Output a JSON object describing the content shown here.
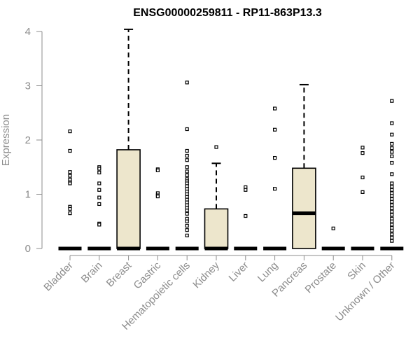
{
  "chart_data": {
    "type": "box",
    "title": "ENSG00000259811 - RP11-863P13.3",
    "xlabel": "",
    "ylabel": "Expression",
    "ylim": [
      0,
      4
    ],
    "yticks": [
      0,
      1,
      2,
      3,
      4
    ],
    "box_fill": "#ede6cc",
    "line_color": "#000000",
    "axis_color": "#8c8c8c",
    "categories": [
      "Bladder",
      "Brain",
      "Breast",
      "Gastric",
      "Hematopoietic cells",
      "Kidney",
      "Liver",
      "Lung",
      "Pancreas",
      "Prostate",
      "Skin",
      "Unknown / Other"
    ],
    "boxes": [
      {
        "q1": 0,
        "median": 0,
        "q3": 0,
        "whisker_low": 0,
        "whisker_high": 0,
        "outliers": [
          2.16,
          1.8,
          1.41,
          1.34,
          1.27,
          1.22,
          1.2,
          0.77,
          0.73,
          0.65
        ]
      },
      {
        "q1": 0,
        "median": 0,
        "q3": 0,
        "whisker_low": 0,
        "whisker_high": 0,
        "outliers": [
          1.5,
          1.47,
          1.4,
          1.2,
          1.08,
          0.94,
          0.82,
          0.46,
          0.44
        ]
      },
      {
        "q1": 0,
        "median": 0,
        "q3": 1.82,
        "whisker_low": 0,
        "whisker_high": 4.04,
        "outliers": []
      },
      {
        "q1": 0,
        "median": 0,
        "q3": 0,
        "whisker_low": 0,
        "whisker_high": 0,
        "outliers": [
          1.46,
          1.44,
          1.02,
          0.98,
          0.96
        ]
      },
      {
        "q1": 0,
        "median": 0,
        "q3": 0,
        "whisker_low": 0,
        "whisker_high": 0,
        "outliers": [
          3.06,
          2.2,
          1.8,
          1.71,
          1.63,
          1.5,
          1.42,
          1.35,
          1.28,
          1.24,
          1.2,
          1.15,
          1.1,
          1.05,
          1.0,
          0.95,
          0.9,
          0.85,
          0.8,
          0.75,
          0.7,
          0.64,
          0.55,
          0.5,
          0.42,
          0.34,
          0.24
        ]
      },
      {
        "q1": 0,
        "median": 0,
        "q3": 0.73,
        "whisker_low": 0,
        "whisker_high": 1.57,
        "outliers": [
          1.87
        ]
      },
      {
        "q1": 0,
        "median": 0,
        "q3": 0,
        "whisker_low": 0,
        "whisker_high": 0,
        "outliers": [
          1.13,
          1.08,
          0.6
        ]
      },
      {
        "q1": 0,
        "median": 0,
        "q3": 0,
        "whisker_low": 0,
        "whisker_high": 0,
        "outliers": [
          2.58,
          2.19,
          1.67,
          1.1
        ]
      },
      {
        "q1": 0,
        "median": 0.65,
        "q3": 1.48,
        "whisker_low": 0,
        "whisker_high": 3.02,
        "outliers": []
      },
      {
        "q1": 0,
        "median": 0,
        "q3": 0,
        "whisker_low": 0,
        "whisker_high": 0,
        "outliers": [
          0.37
        ]
      },
      {
        "q1": 0,
        "median": 0,
        "q3": 0,
        "whisker_low": 0,
        "whisker_high": 0,
        "outliers": [
          1.86,
          1.76,
          1.31,
          1.04
        ]
      },
      {
        "q1": 0,
        "median": 0,
        "q3": 0,
        "whisker_low": 0,
        "whisker_high": 0,
        "outliers": [
          2.72,
          2.31,
          2.1,
          1.93,
          1.85,
          1.78,
          1.7,
          1.58,
          1.37,
          1.2,
          1.14,
          1.08,
          1.02,
          0.97,
          0.91,
          0.86,
          0.8,
          0.74,
          0.68,
          0.62,
          0.55,
          0.5,
          0.44,
          0.38,
          0.33,
          0.26,
          0.2,
          0.14
        ]
      }
    ]
  }
}
